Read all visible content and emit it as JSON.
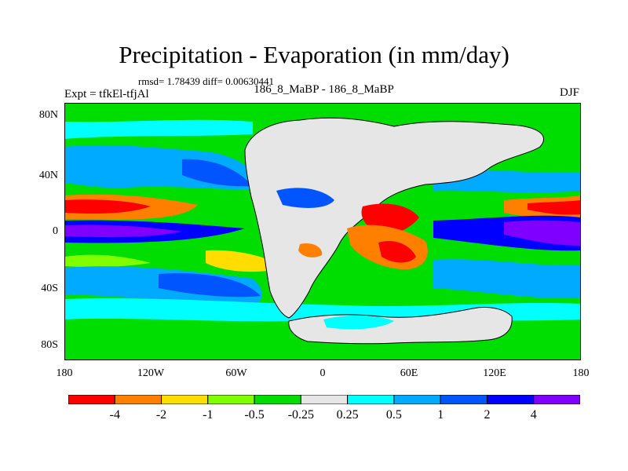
{
  "title": "Precipitation - Evaporation (in mm/day)",
  "stats": "rmsd= 1.78439 diff= 0.00630441",
  "left_label": "Expt = tfkEl-tfjAl",
  "center_label": "186_8_MaBP - 186_8_MaBP",
  "right_label": "DJF",
  "y_ticks": [
    "80N",
    "40N",
    "0",
    "40S",
    "80S"
  ],
  "x_ticks": [
    "180",
    "120W",
    "60W",
    "0",
    "60E",
    "120E",
    "180"
  ],
  "colorbar": {
    "colors": [
      "#ff0000",
      "#ff8000",
      "#ffdd00",
      "#80ff00",
      "#00dd00",
      "#e6e6e6",
      "#00ffff",
      "#00aaff",
      "#0055ff",
      "#0000ff",
      "#8000ff"
    ],
    "labels": [
      "-4",
      "-2",
      "-1",
      "-0.5",
      "-0.25",
      "0.25",
      "0.5",
      "1",
      "2",
      "4"
    ]
  }
}
